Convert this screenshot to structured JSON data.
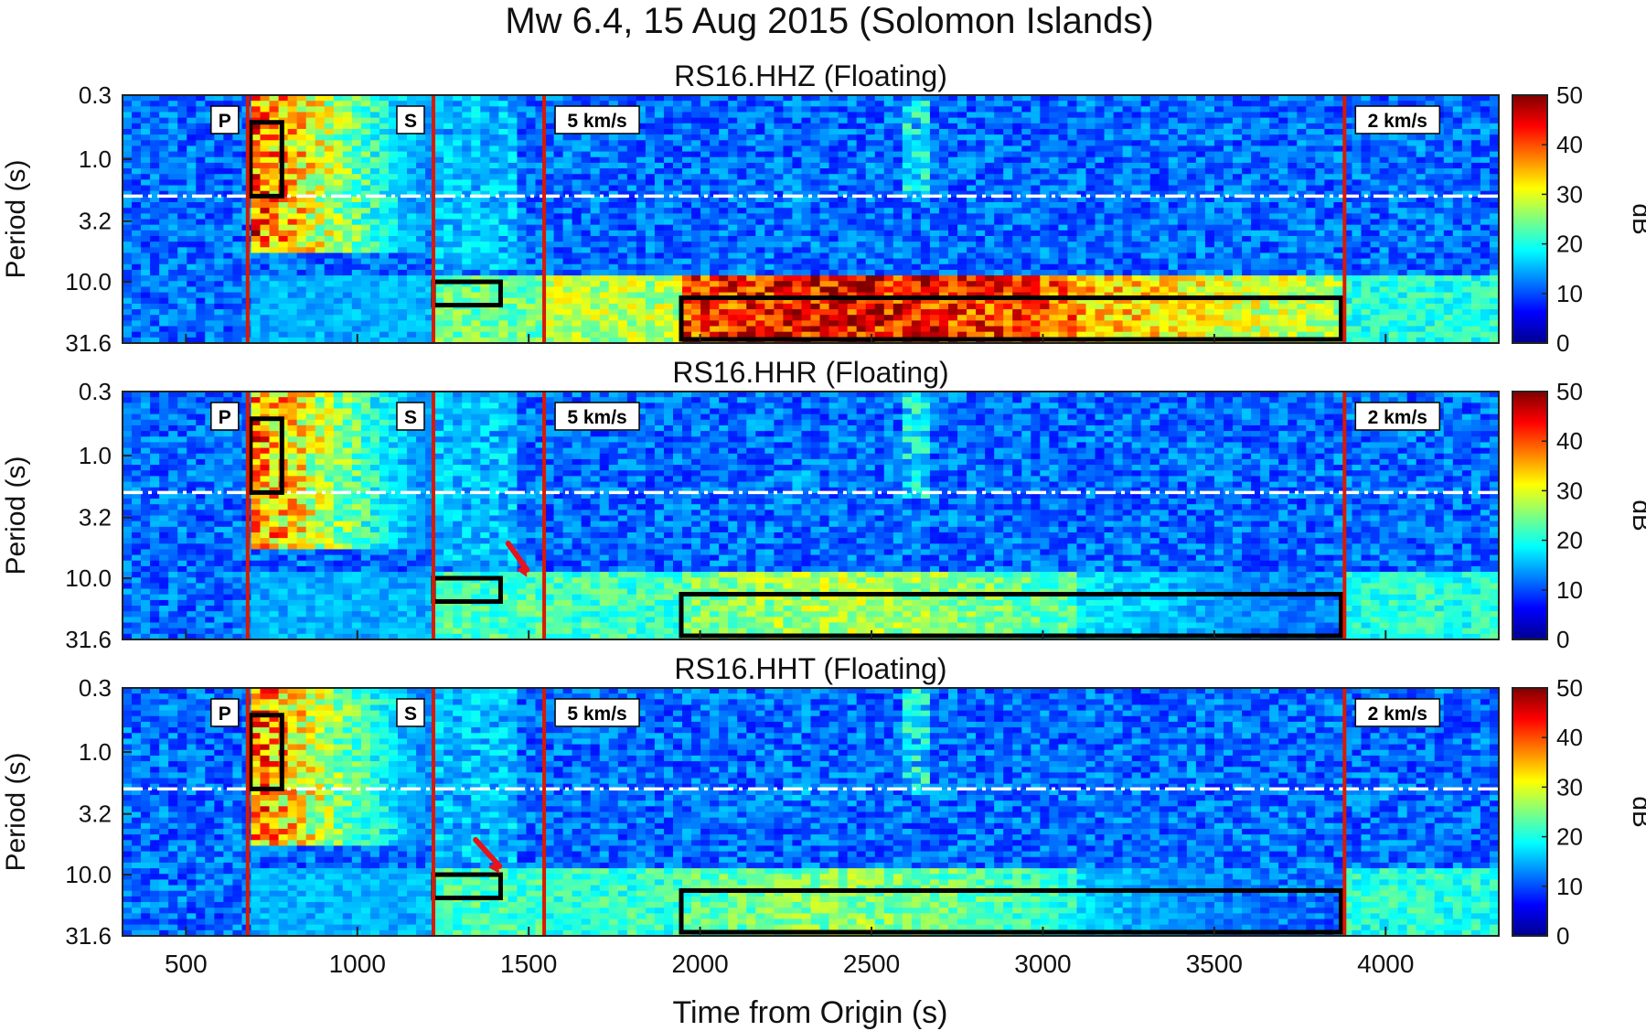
{
  "figure": {
    "title": "Mw 6.4, 15 Aug 2015 (Solomon Islands)",
    "xlabel": "Time from Origin (s)",
    "x_ticks": [
      500,
      1000,
      1500,
      2000,
      2500,
      3000,
      3500,
      4000
    ]
  },
  "chart_data": [
    {
      "type": "heatmap",
      "title": "RS16.HHZ (Floating)",
      "xlabel": "Time from Origin (s)",
      "ylabel": "Period (s)",
      "xlim": [
        315,
        4330
      ],
      "ylim": [
        0.3,
        31.6
      ],
      "yscale": "log",
      "y_ticks": [
        "0.3",
        "1.0",
        "3.2",
        "10.0",
        "31.6"
      ],
      "colorbar": {
        "label": "dB",
        "range": [
          0,
          50
        ],
        "ticks": [
          0,
          10,
          20,
          30,
          40,
          50
        ],
        "colormap": "jet"
      },
      "phase_lines": [
        {
          "label": "P",
          "time": 680
        },
        {
          "label": "S",
          "time": 1222
        },
        {
          "label": "5 km/s",
          "time": 1545
        },
        {
          "label": "2 km/s",
          "time": 3880
        }
      ],
      "separator_period": 2.0,
      "boxes": [
        {
          "t": [
            688,
            780
          ],
          "p": [
            0.5,
            2.0
          ]
        },
        {
          "t": [
            1222,
            1418
          ],
          "p": [
            10.0,
            15.5
          ]
        },
        {
          "t": [
            1945,
            3870
          ],
          "p": [
            13.5,
            29.5
          ]
        }
      ],
      "energy": {
        "p_coda": 42,
        "s_window": 26,
        "surface_peak": 48,
        "surface_band": [
          10,
          31.6
        ]
      },
      "arrows": []
    },
    {
      "type": "heatmap",
      "title": "RS16.HHR (Floating)",
      "xlabel": "Time from Origin (s)",
      "ylabel": "Period (s)",
      "xlim": [
        315,
        4330
      ],
      "ylim": [
        0.3,
        31.6
      ],
      "yscale": "log",
      "y_ticks": [
        "0.3",
        "1.0",
        "3.2",
        "10.0",
        "31.6"
      ],
      "colorbar": {
        "label": "dB",
        "range": [
          0,
          50
        ],
        "ticks": [
          0,
          10,
          20,
          30,
          40,
          50
        ],
        "colormap": "jet"
      },
      "phase_lines": [
        {
          "label": "P",
          "time": 680
        },
        {
          "label": "S",
          "time": 1222
        },
        {
          "label": "5 km/s",
          "time": 1545
        },
        {
          "label": "2 km/s",
          "time": 3880
        }
      ],
      "separator_period": 2.0,
      "boxes": [
        {
          "t": [
            688,
            780
          ],
          "p": [
            0.5,
            2.0
          ]
        },
        {
          "t": [
            1222,
            1418
          ],
          "p": [
            10.0,
            15.5
          ]
        },
        {
          "t": [
            1945,
            3870
          ],
          "p": [
            13.5,
            29.5
          ]
        }
      ],
      "energy": {
        "p_coda": 40,
        "s_window": 24,
        "surface_peak": 30,
        "surface_band": [
          10,
          31.6
        ]
      },
      "arrows": [
        {
          "t": [
            1440,
            1495
          ],
          "p": [
            5.2,
            9.8
          ]
        }
      ]
    },
    {
      "type": "heatmap",
      "title": "RS16.HHT (Floating)",
      "xlabel": "Time from Origin (s)",
      "ylabel": "Period (s)",
      "xlim": [
        315,
        4330
      ],
      "ylim": [
        0.3,
        31.6
      ],
      "yscale": "log",
      "y_ticks": [
        "0.3",
        "1.0",
        "3.2",
        "10.0",
        "31.6"
      ],
      "colorbar": {
        "label": "dB",
        "range": [
          0,
          50
        ],
        "ticks": [
          0,
          10,
          20,
          30,
          40,
          50
        ],
        "colormap": "jet"
      },
      "phase_lines": [
        {
          "label": "P",
          "time": 680
        },
        {
          "label": "S",
          "time": 1222
        },
        {
          "label": "5 km/s",
          "time": 1545
        },
        {
          "label": "2 km/s",
          "time": 3880
        }
      ],
      "separator_period": 2.0,
      "boxes": [
        {
          "t": [
            688,
            780
          ],
          "p": [
            0.5,
            2.0
          ]
        },
        {
          "t": [
            1222,
            1418
          ],
          "p": [
            10.0,
            15.5
          ]
        },
        {
          "t": [
            1945,
            3870
          ],
          "p": [
            13.5,
            29.5
          ]
        }
      ],
      "energy": {
        "p_coda": 40,
        "s_window": 24,
        "surface_peak": 28,
        "surface_band": [
          10,
          31.6
        ]
      },
      "arrows": [
        {
          "t": [
            1345,
            1415
          ],
          "p": [
            5.2,
            9.8
          ]
        }
      ]
    }
  ]
}
